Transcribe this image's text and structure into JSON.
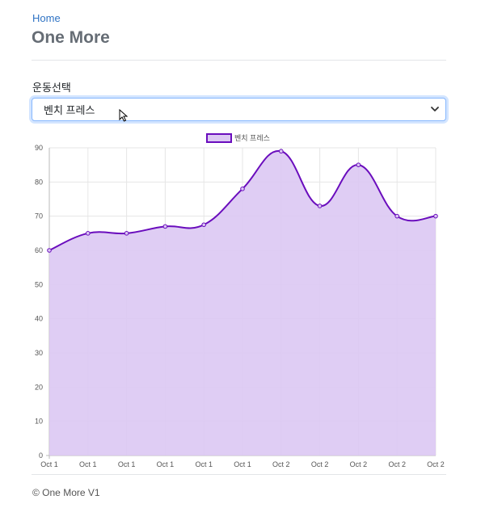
{
  "breadcrumb": {
    "home_label": "Home"
  },
  "page": {
    "title": "One More"
  },
  "form": {
    "label": "운동선택",
    "selected_value": "벤치 프레스"
  },
  "chart_data": {
    "type": "area",
    "x": [
      "Oct 1",
      "Oct 1",
      "Oct 1",
      "Oct 1",
      "Oct 1",
      "Oct 1",
      "Oct 2",
      "Oct 2",
      "Oct 2",
      "Oct 2",
      "Oct 2"
    ],
    "series": [
      {
        "name": "벤치 프레스",
        "values": [
          60,
          65,
          65,
          67,
          67.5,
          78,
          89,
          73,
          85,
          70,
          70
        ]
      }
    ],
    "ylim": [
      0,
      90
    ],
    "yticks": [
      0,
      10,
      20,
      30,
      40,
      50,
      60,
      70,
      80,
      90
    ],
    "grid": true,
    "legend": "top",
    "line_color": "#6a0dbd",
    "fill_color": "#dcc8f3"
  },
  "footer": {
    "text": "© One More V1"
  }
}
